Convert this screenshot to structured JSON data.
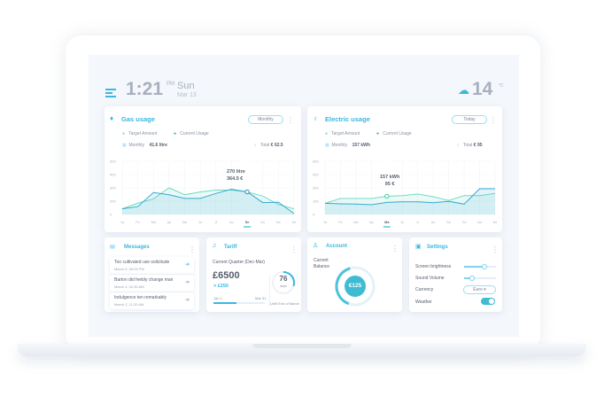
{
  "header": {
    "time": "1:21",
    "ampm": "PM",
    "day": "Sun",
    "date": "Mar 13",
    "temperature": "14",
    "temp_unit": "°C",
    "weather_icon": "cloud-snow-icon"
  },
  "colors": {
    "accent": "#3ab8e0",
    "target": "#6fdcc0",
    "current": "#35a9d6"
  },
  "gas": {
    "title": "Gas usage",
    "period": "Monthly",
    "legend_target": "Target Amount",
    "legend_current": "Current Usage",
    "stat_label": "Monthly",
    "stat_value": "41.6 litre",
    "total_label": "Total",
    "total_value": "€ 62.5",
    "tooltip_line1": "270 litre",
    "tooltip_line2": "364.5 €"
  },
  "electric": {
    "title": "Electric usage",
    "period": "Today",
    "legend_target": "Target Amount",
    "legend_current": "Current Usage",
    "stat_label": "Monthly",
    "stat_value": "157 kWh",
    "total_label": "Total",
    "total_value": "€ 95",
    "tooltip_line1": "157 kWh",
    "tooltip_line2": "95 €"
  },
  "chart_data": [
    {
      "type": "area",
      "categories": [
        "Ja",
        "Fe",
        "Ma",
        "Ap",
        "Ma",
        "Ju",
        "Jl",
        "Au",
        "Se",
        "Oc",
        "No",
        "De"
      ],
      "y_ticks": [
        "0",
        "200",
        "300",
        "400",
        "500"
      ],
      "ylim": [
        0,
        500
      ],
      "highlight": "Se",
      "grid": true,
      "series": [
        {
          "name": "Target Amount",
          "values": [
            85,
            170,
            217,
            300,
            248,
            269,
            283,
            283,
            269,
            238,
            149,
            85
          ]
        },
        {
          "name": "Current Usage",
          "values": [
            85,
            119,
            265,
            248,
            221,
            221,
            258,
            290,
            270,
            179,
            183,
            13
          ]
        }
      ]
    },
    {
      "type": "area",
      "categories": [
        "Ja",
        "Fe",
        "Ma",
        "Ap",
        "Ma",
        "Ju",
        "Jl",
        "Au",
        "Se",
        "Oc",
        "No",
        "De"
      ],
      "y_ticks": [
        "0",
        "150",
        "300",
        "450",
        "600"
      ],
      "ylim": [
        0,
        600
      ],
      "highlight": "Ma",
      "grid": true,
      "series": [
        {
          "name": "Target Amount",
          "values": [
            126,
            180,
            180,
            180,
            205,
            212,
            230,
            200,
            158,
            212,
            212,
            237
          ]
        },
        {
          "name": "Current Usage",
          "values": [
            126,
            120,
            117,
            110,
            136,
            142,
            142,
            133,
            148,
            117,
            290,
            290
          ]
        }
      ]
    }
  ],
  "messages": {
    "title": "Messages",
    "items": [
      {
        "text": "Too cultivated use solicitude",
        "date": "March 5, 08:05 PM"
      },
      {
        "text": "Barton did feebly change man",
        "date": "March 4, 02:30 AM"
      },
      {
        "text": "Indulgence ten remarkably",
        "date": "March 2, 11:20 AM"
      }
    ]
  },
  "tariff": {
    "title": "Tariff",
    "quarter": "Current Quarter (Dec-Mar)",
    "amount": "£6500",
    "delta": "> £250",
    "start": "Jan 1",
    "end": "Mar 31",
    "days": "76",
    "days_unit": "days",
    "until": "Until End of March",
    "progress": 0.45,
    "days_fraction": 0.3
  },
  "account": {
    "title": "Account",
    "label_line1": "Current",
    "label_line2": "Balance",
    "balance": "€125",
    "fraction": 0.4
  },
  "settings": {
    "title": "Settings",
    "brightness_label": "Screen brightness",
    "brightness": 0.65,
    "volume_label": "Sound Volume",
    "volume": 0.25,
    "currency_label": "Currency",
    "currency": "Euro",
    "weather_label": "Weather",
    "weather_on": true
  }
}
